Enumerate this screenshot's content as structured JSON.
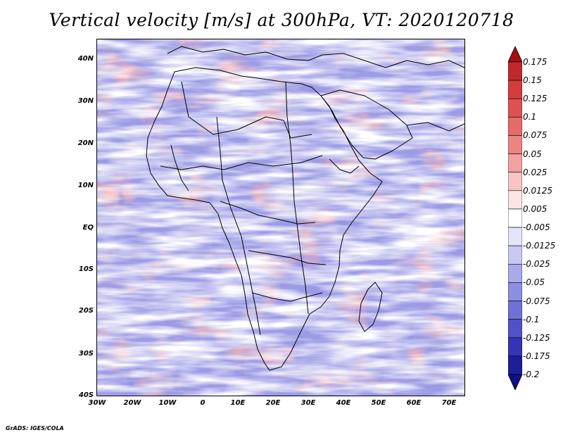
{
  "title": "Vertical velocity [m/s] at 300hPa, VT: 2020120718",
  "footer": "GrADS: IGES/COLA",
  "map": {
    "lat_labels": [
      "40N",
      "30N",
      "20N",
      "10N",
      "EQ",
      "10S",
      "20S",
      "30S",
      "40S"
    ],
    "lon_labels": [
      "30W",
      "20W",
      "10W",
      "0",
      "10E",
      "20E",
      "30E",
      "40E",
      "50E",
      "60E",
      "70E"
    ],
    "lat_range": [
      -40,
      45
    ],
    "lon_range": [
      -30,
      75
    ]
  },
  "colorbar": {
    "levels": [
      "0.175",
      "0.15",
      "0.125",
      "0.1",
      "0.075",
      "0.05",
      "0.025",
      "0.0125",
      "0.005",
      "-0.005",
      "-0.0125",
      "-0.025",
      "-0.05",
      "-0.075",
      "-0.1",
      "-0.125",
      "-0.175",
      "-0.2"
    ],
    "colors": [
      "#a50f15",
      "#c0282c",
      "#d23c3c",
      "#e05050",
      "#e66a6a",
      "#ec8484",
      "#f2a0a0",
      "#f8c4c4",
      "#fce4e4",
      "#ffffff",
      "#e4e4fa",
      "#c8c8f2",
      "#aaaaea",
      "#8e8ee0",
      "#7070d6",
      "#5252c8",
      "#3434b4",
      "#1e1e9a",
      "#10108a"
    ]
  }
}
